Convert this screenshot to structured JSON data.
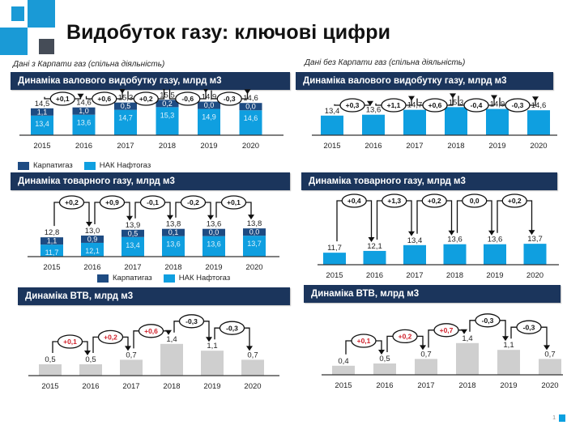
{
  "header": {
    "title": "Видобуток газу: ключові цифри"
  },
  "colors": {
    "karpaty": "#1e4b82",
    "naftogaz": "#0f9fe0",
    "vtb": "#cfcfcf",
    "header_bg": "#1b355c",
    "delta_red": "#d0202a",
    "logo_blue": "#1a9ad6",
    "logo_dark": "#454c57"
  },
  "left": {
    "note": "Дані з Карпати газ (спільна діяльність)"
  },
  "right": {
    "note": "Дані без Карпати газ (спільна діяльність)"
  },
  "legend": {
    "karpaty": "Карпатигаз",
    "naftogaz": "НАК Нафтогаз"
  },
  "footer": {
    "page": "1"
  },
  "chart_data": [
    {
      "id": "left-gross",
      "title": "Динаміка валового видобутку газу, млрд м3",
      "type": "bar",
      "stacked": true,
      "categories": [
        "2015",
        "2016",
        "2017",
        "2018",
        "2019",
        "2020"
      ],
      "series": [
        {
          "name": "НАК Нафтогаз",
          "values": [
            13.4,
            13.6,
            14.7,
            15.3,
            14.9,
            14.6
          ],
          "labels": [
            "13,4",
            "13,6",
            "14,7",
            "15,3",
            "14,9",
            "14,6"
          ]
        },
        {
          "name": "Карпатигаз",
          "values": [
            1.1,
            1.0,
            0.5,
            0.2,
            0.0,
            0.0
          ],
          "labels": [
            "1,1",
            "1,0",
            "0,5",
            "0,2",
            "0,0",
            "0,0"
          ]
        }
      ],
      "totals": [
        "14,5",
        "14,6",
        "15,3",
        "15,5",
        "14,9",
        "14,6"
      ],
      "deltas": [
        {
          "label": "+0,1",
          "red": false
        },
        {
          "label": "+0,6",
          "red": false
        },
        {
          "label": "+0,2",
          "red": false
        },
        {
          "label": "-0,6",
          "red": false
        },
        {
          "label": "-0,3",
          "red": false
        }
      ],
      "legend": true
    },
    {
      "id": "right-gross",
      "title": "Динаміка валового видобутку газу, млрд м3",
      "type": "bar",
      "stacked": false,
      "categories": [
        "2015",
        "2016",
        "2017",
        "2018",
        "2019",
        "2020"
      ],
      "series": [
        {
          "name": "НАК Нафтогаз",
          "values": [
            13.4,
            13.6,
            14.7,
            15.3,
            14.9,
            14.6
          ],
          "labels": [
            "13,4",
            "13,6",
            "14,7",
            "15,3",
            "14,9",
            "14,6"
          ]
        }
      ],
      "totals": [
        "13,4",
        "13,6",
        "14,7",
        "15,3",
        "14,9",
        "14,6"
      ],
      "deltas": [
        {
          "label": "+0,3",
          "red": false
        },
        {
          "label": "+1,1",
          "red": false
        },
        {
          "label": "+0,6",
          "red": false
        },
        {
          "label": "-0,4",
          "red": false
        },
        {
          "label": "-0,3",
          "red": false
        }
      ],
      "legend": false
    },
    {
      "id": "left-commodity",
      "title": "Динаміка товарного газу, млрд м3",
      "type": "bar",
      "stacked": true,
      "categories": [
        "2015",
        "2016",
        "2017",
        "2018",
        "2019",
        "2020"
      ],
      "series": [
        {
          "name": "НАК Нафтогаз",
          "values": [
            11.7,
            12.1,
            13.4,
            13.6,
            13.6,
            13.7
          ],
          "labels": [
            "11,7",
            "12,1",
            "13,4",
            "13,6",
            "13,6",
            "13,7"
          ]
        },
        {
          "name": "Карпатигаз",
          "values": [
            1.1,
            0.9,
            0.5,
            0.1,
            0.0,
            0.0
          ],
          "labels": [
            "1,1",
            "0,9",
            "0,5",
            "0,1",
            "0,0",
            "0,0"
          ]
        }
      ],
      "totals": [
        "12,8",
        "13,0",
        "13,9",
        "13,8",
        "13,6",
        "13,8"
      ],
      "deltas": [
        {
          "label": "+0,2",
          "red": false
        },
        {
          "label": "+0,9",
          "red": false
        },
        {
          "label": "-0,1",
          "red": false
        },
        {
          "label": "-0,2",
          "red": false
        },
        {
          "label": "+0,1",
          "red": false
        }
      ],
      "legend": true
    },
    {
      "id": "right-commodity",
      "title": "Динаміка товарного газу, млрд м3",
      "type": "bar",
      "stacked": false,
      "categories": [
        "2015",
        "2016",
        "2017",
        "2018",
        "2019",
        "2020"
      ],
      "series": [
        {
          "name": "НАК Нафтогаз",
          "values": [
            11.7,
            12.1,
            13.4,
            13.6,
            13.6,
            13.7
          ],
          "labels": [
            "11,7",
            "12,1",
            "13,4",
            "13,6",
            "13,6",
            "13,7"
          ]
        }
      ],
      "totals": [
        "11,7",
        "12,1",
        "13,4",
        "13,6",
        "13,6",
        "13,7"
      ],
      "deltas": [
        {
          "label": "+0,4",
          "red": false
        },
        {
          "label": "+1,3",
          "red": false
        },
        {
          "label": "+0,2",
          "red": false
        },
        {
          "label": "0,0",
          "red": false
        },
        {
          "label": "+0,2",
          "red": false
        }
      ],
      "legend": false
    },
    {
      "id": "left-vtb",
      "title": "Динаміка ВТВ, млрд м3",
      "type": "bar",
      "stacked": false,
      "categories": [
        "2015",
        "2016",
        "2017",
        "2018",
        "2019",
        "2020"
      ],
      "series": [
        {
          "name": "ВТВ",
          "values": [
            0.5,
            0.5,
            0.7,
            1.4,
            1.1,
            0.7
          ],
          "labels": [
            "0,5",
            "0,5",
            "0,7",
            "1,4",
            "1,1",
            "0,7"
          ]
        }
      ],
      "totals": [
        "0,5",
        "0,5",
        "0,7",
        "1,4",
        "1,1",
        "0,7"
      ],
      "deltas": [
        {
          "label": "+0,1",
          "red": true
        },
        {
          "label": "+0,2",
          "red": true
        },
        {
          "label": "+0,6",
          "red": true
        },
        {
          "label": "-0,3",
          "red": false
        },
        {
          "label": "-0,3",
          "red": false
        }
      ],
      "legend": false
    },
    {
      "id": "right-vtb",
      "title": "Динаміка ВТВ, млрд м3",
      "type": "bar",
      "stacked": false,
      "categories": [
        "2015",
        "2016",
        "2017",
        "2018",
        "2019",
        "2020"
      ],
      "series": [
        {
          "name": "ВТВ",
          "values": [
            0.4,
            0.5,
            0.7,
            1.4,
            1.1,
            0.7
          ],
          "labels": [
            "0,4",
            "0,5",
            "0,7",
            "1,4",
            "1,1",
            "0,7"
          ]
        }
      ],
      "totals": [
        "0,4",
        "0,5",
        "0,7",
        "1,4",
        "1,1",
        "0,7"
      ],
      "deltas": [
        {
          "label": "+0,1",
          "red": true
        },
        {
          "label": "+0,2",
          "red": true
        },
        {
          "label": "+0,7",
          "red": true
        },
        {
          "label": "-0,3",
          "red": false
        },
        {
          "label": "-0,3",
          "red": false
        }
      ],
      "legend": false
    }
  ]
}
